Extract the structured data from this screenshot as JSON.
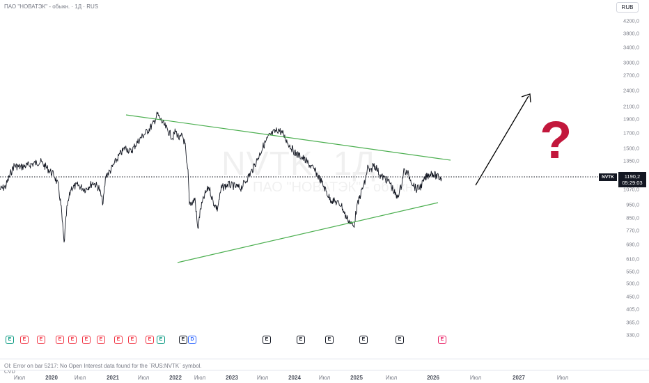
{
  "header": {
    "title": "ПАО \"НОВАТЭК\" - обыкн. · 1Д · RUS",
    "currency": "RUB"
  },
  "watermark": {
    "ticker": "NVTK, 1Д",
    "name": "ПАО \"НОВАТЭК\" - обыкн."
  },
  "price_axis": {
    "labels": [
      "4200,0",
      "3800,0",
      "3400,0",
      "3000,0",
      "2700,0",
      "2400,0",
      "2100,0",
      "1900,0",
      "1700,0",
      "1500,0",
      "1350,0",
      "1070,0",
      "950,0",
      "850,0",
      "770,0",
      "690,0",
      "610,0",
      "550,0",
      "500,0",
      "450,0",
      "405,0",
      "365,0",
      "330,0"
    ],
    "last_price": "1190,2",
    "countdown": "05:29:03",
    "symbol": "NVTK"
  },
  "time_axis": {
    "labels": [
      {
        "text": "Июл",
        "year": false
      },
      {
        "text": "2020",
        "year": true
      },
      {
        "text": "Июл",
        "year": false
      },
      {
        "text": "2021",
        "year": true
      },
      {
        "text": "Июл",
        "year": false
      },
      {
        "text": "2022",
        "year": true
      },
      {
        "text": "Июл",
        "year": false
      },
      {
        "text": "2023",
        "year": true
      },
      {
        "text": "Июл",
        "year": false
      },
      {
        "text": "2024",
        "year": true
      },
      {
        "text": "Июл",
        "year": false
      },
      {
        "text": "2025",
        "year": true
      },
      {
        "text": "Июл",
        "year": false
      },
      {
        "text": "2026",
        "year": true
      },
      {
        "text": "Июл",
        "year": false
      },
      {
        "text": "2027",
        "year": true
      },
      {
        "text": "Июл",
        "year": false
      }
    ]
  },
  "events": {
    "earnings_letter": "E",
    "dividend_letter": "D",
    "markers": [
      {
        "letter": "E",
        "kind": "green"
      },
      {
        "letter": "E",
        "kind": "red"
      },
      {
        "letter": "E",
        "kind": "red"
      },
      {
        "letter": "E",
        "kind": "red"
      },
      {
        "letter": "E",
        "kind": "red"
      },
      {
        "letter": "E",
        "kind": "red"
      },
      {
        "letter": "E",
        "kind": "red"
      },
      {
        "letter": "E",
        "kind": "red"
      },
      {
        "letter": "E",
        "kind": "red"
      },
      {
        "letter": "E",
        "kind": "red"
      },
      {
        "letter": "E",
        "kind": "green"
      },
      {
        "letter": "E",
        "kind": "neutral"
      },
      {
        "letter": "D",
        "kind": "blue"
      },
      {
        "letter": "E",
        "kind": "neutral"
      },
      {
        "letter": "E",
        "kind": "neutral"
      },
      {
        "letter": "E",
        "kind": "neutral"
      },
      {
        "letter": "E",
        "kind": "neutral"
      },
      {
        "letter": "E",
        "kind": "neutral"
      },
      {
        "letter": "E",
        "kind": "pink"
      }
    ]
  },
  "status": {
    "error_message": "OI: Error on bar 5217: No Open Interest data found for the `RUS:NVTK` symbol.",
    "cvd_label": "CVD"
  },
  "annotation": {
    "question": "?"
  },
  "colors": {
    "trendline": "#4caf50",
    "arrow": "#000000",
    "question_mark": "#c2173c",
    "price_line": "#131722",
    "green_event": "#089981",
    "red_event": "#f23645",
    "blue_event": "#2962ff",
    "neutral_event": "#131722",
    "pink_event": "#e91e63"
  }
}
